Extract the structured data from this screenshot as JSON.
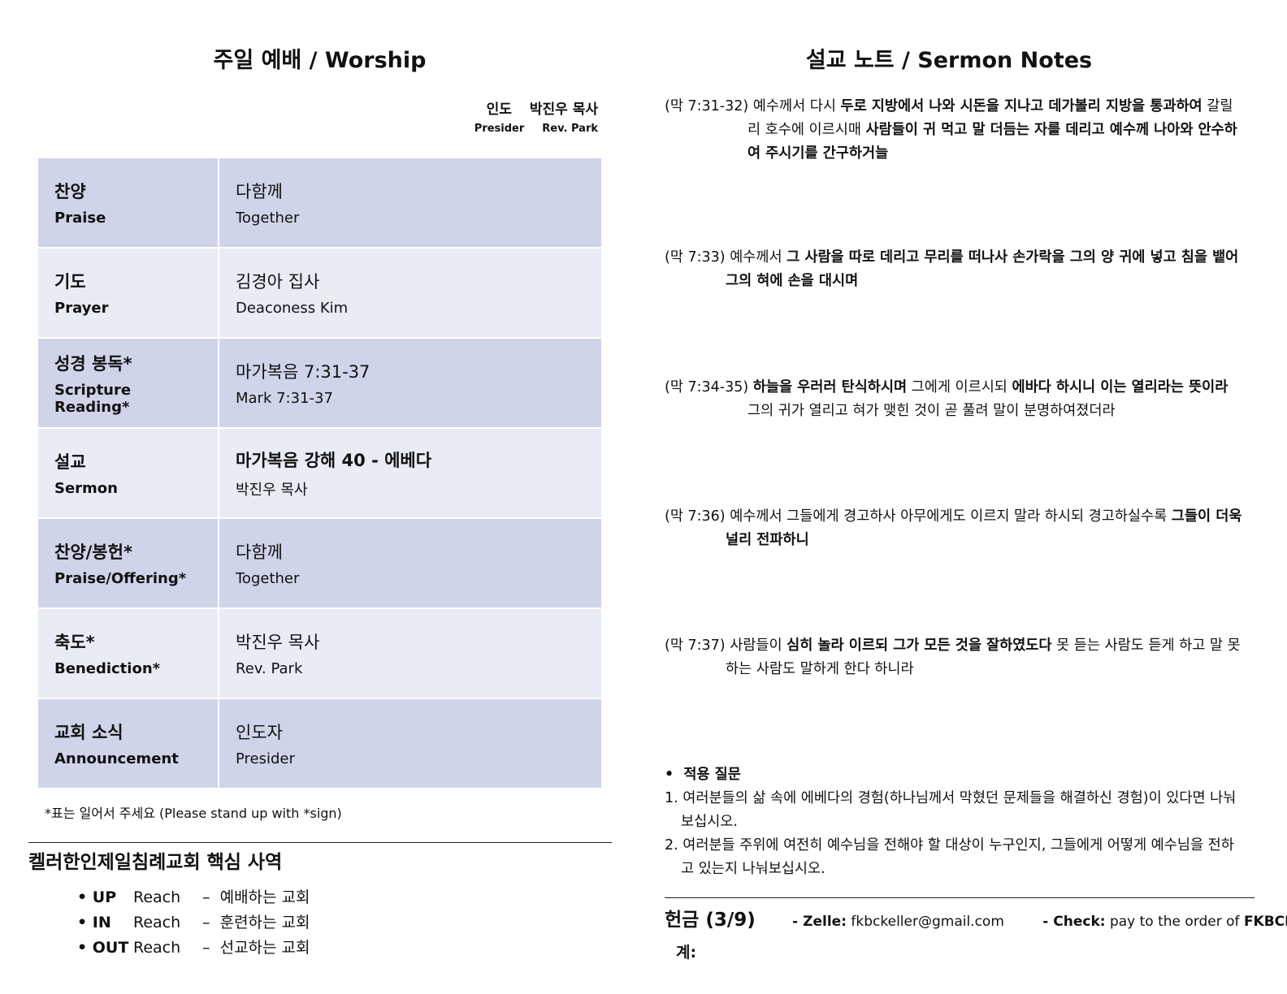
{
  "worship": {
    "title": "주일 예배 / Worship",
    "presider": {
      "label_ko": "인도",
      "name_ko": "박진우 목사",
      "label_en": "Presider",
      "name_en": "Rev. Park"
    },
    "rows": [
      {
        "ko": "찬양",
        "en": "Praise",
        "who_ko": "다함께",
        "who_en": "Together",
        "bold": false
      },
      {
        "ko": "기도",
        "en": "Prayer",
        "who_ko": "김경아 집사",
        "who_en": "Deaconess Kim",
        "bold": false
      },
      {
        "ko": "성경 봉독*",
        "en": "Scripture Reading*",
        "who_ko": "마가복음 7:31-37",
        "who_en": "Mark 7:31-37",
        "bold": false
      },
      {
        "ko": "설교",
        "en": "Sermon",
        "who_ko": "마가복음 강해 40  - 에베다",
        "who_en": "박진우 목사",
        "bold": true
      },
      {
        "ko": "찬양/봉헌*",
        "en": "Praise/Offering*",
        "who_ko": "다함께",
        "who_en": "Together",
        "bold": false
      },
      {
        "ko": "축도*",
        "en": "Benediction*",
        "who_ko": "박진우 목사",
        "who_en": "Rev. Park",
        "bold": false
      },
      {
        "ko": "교회 소식",
        "en": "Announcement",
        "who_ko": "인도자",
        "who_en": "Presider",
        "bold": false
      }
    ],
    "note": "*표는 일어서 주세요 (Please stand up with *sign)"
  },
  "ministry": {
    "title": "켈러한인제일침례교회 핵심 사역",
    "items": [
      {
        "tag": "UP",
        "reach": "Reach",
        "dash": "–",
        "desc": "예배하는 교회"
      },
      {
        "tag": "IN",
        "reach": "Reach",
        "dash": "–",
        "desc": "훈련하는 교회"
      },
      {
        "tag": "OUT",
        "reach": "Reach",
        "dash": "–",
        "desc": "선교하는 교회"
      }
    ]
  },
  "sermon": {
    "title": "설교 노트 / Sermon Notes",
    "verses": [
      {
        "ref": "(막 7:31-32)",
        "segments": [
          {
            "t": " 예수께서 다시 ",
            "b": false
          },
          {
            "t": "두로 지방에서 나와 시돈을 지나고 데가볼리 지방을 통과하여",
            "b": true
          },
          {
            "t": " 갈릴리 호수에 이르시매 ",
            "b": false
          },
          {
            "t": "사람들이 귀 먹고 말 더듬는 자를 데리고 예수께 나아와 안수하여 주시기를 간구하거늘",
            "b": true
          }
        ]
      },
      {
        "ref": "(막 7:33)",
        "segments": [
          {
            "t": " 예수께서 ",
            "b": false
          },
          {
            "t": "그 사람을 따로 데리고 무리를 떠나사 손가락을 그의 양 귀에 넣고 침을 뱉어 그의 혀에 손을 대시며",
            "b": true
          }
        ]
      },
      {
        "ref": "(막 7:34-35)",
        "segments": [
          {
            "t": " ",
            "b": false
          },
          {
            "t": "하늘을 우러러 탄식하시며",
            "b": true
          },
          {
            "t": " 그에게 이르시되 ",
            "b": false
          },
          {
            "t": "에바다 하시니 이는 열리라는 뜻이라",
            "b": true
          },
          {
            "t": " 그의 귀가 열리고 혀가 맺힌 것이 곧 풀려 말이 분명하여졌더라",
            "b": false
          }
        ]
      },
      {
        "ref": "(막 7:36)",
        "segments": [
          {
            "t": " 예수께서 그들에게 경고하사 아무에게도 이르지 말라 하시되 경고하실수록 ",
            "b": false
          },
          {
            "t": "그들이 더욱 널리 전파하니",
            "b": true
          }
        ]
      },
      {
        "ref": "(막 7:37)",
        "segments": [
          {
            "t": " 사람들이 ",
            "b": false
          },
          {
            "t": "심히 놀라 이르되 그가 모든 것을 잘하였도다",
            "b": true
          },
          {
            "t": " 못 듣는 사람도 듣게 하고 말 못하는 사람도 말하게 한다 하니라",
            "b": false
          }
        ]
      }
    ],
    "application": {
      "heading": "적용 질문",
      "questions": [
        "1. 여러분들의 삶 속에 에베다의 경험(하나님께서 막혔던 문제들을 해결하신 경험)이 있다면 나눠보십시오.",
        "2. 여러분들 주위에 여전히 예수님을 전해야 할 대상이 누구인지, 그들에게 어떻게 예수님을 전하고 있는지 나눠보십시오."
      ]
    }
  },
  "offering": {
    "title": "헌금 (3/9)",
    "zelle_label": "- Zelle:",
    "zelle_value": " fkbckeller@gmail.com",
    "check_label": "- Check:",
    "check_value": " pay to the order of ",
    "check_payee": "FKBCK",
    "total_label": "계:"
  }
}
